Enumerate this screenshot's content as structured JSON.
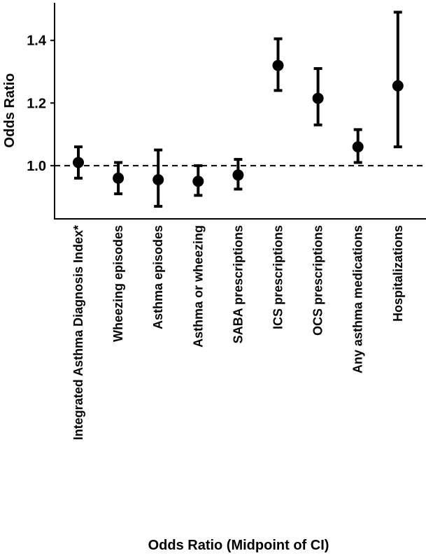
{
  "chart_data": {
    "type": "scatter",
    "subtype": "point-with-error-bars",
    "title": "",
    "xlabel": "Odds Ratio (Midpoint of CI)",
    "ylabel": "Odds Ratio",
    "ylim": [
      0.83,
      1.52
    ],
    "yticks": [
      1.0,
      1.2,
      1.4
    ],
    "ytick_labels": [
      "1.0",
      "1.2",
      "1.4"
    ],
    "reference_line": {
      "y": 1.0,
      "style": "dashed"
    },
    "grid": false,
    "legend": "none",
    "categories": [
      "Integrated Asthma Diagnosis Index*",
      "Wheezing episodes",
      "Asthma episodes",
      "Asthma or wheezing",
      "SABA prescriptions",
      "ICS prescriptions",
      "OCS prescriptions",
      "Any asthma medications",
      "Hospitalizations"
    ],
    "series": [
      {
        "values": [
          1.01,
          0.96,
          0.955,
          0.95,
          0.97,
          1.32,
          1.215,
          1.06,
          1.255
        ],
        "ci_lower": [
          0.96,
          0.91,
          0.87,
          0.905,
          0.925,
          1.24,
          1.13,
          1.01,
          1.06
        ],
        "ci_upper": [
          1.06,
          1.01,
          1.05,
          1.0,
          1.02,
          1.405,
          1.31,
          1.115,
          1.49
        ]
      }
    ],
    "colors": {
      "marker": "#000000",
      "axis": "#000000"
    }
  }
}
